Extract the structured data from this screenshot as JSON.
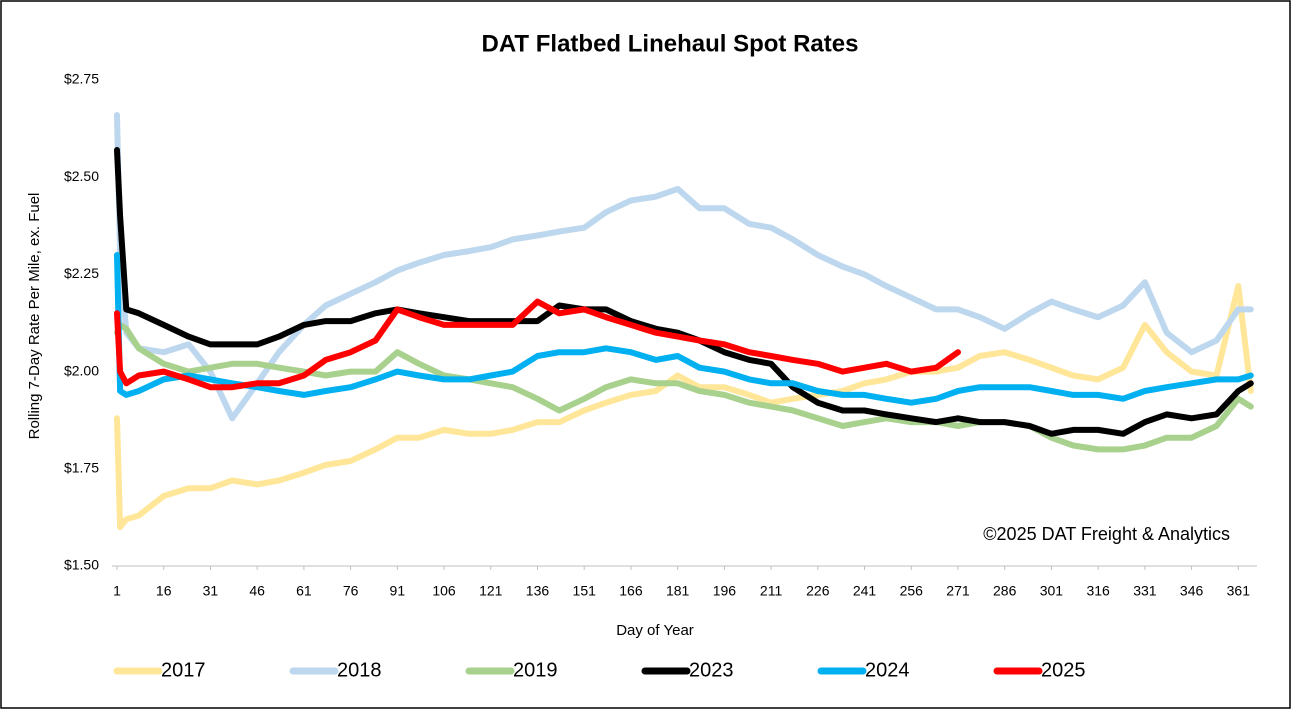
{
  "chart_data": {
    "type": "line",
    "title": "DAT Flatbed Linehaul Spot Rates",
    "x_label": "Day of Year",
    "y_label": "Rolling 7-Day Rate Per Mile, ex. Fuel",
    "annotation": "©2025 DAT Freight & Analytics",
    "x": [
      1,
      2,
      4,
      8,
      16,
      24,
      31,
      38,
      46,
      53,
      61,
      68,
      76,
      84,
      91,
      98,
      106,
      114,
      121,
      128,
      136,
      143,
      151,
      158,
      166,
      174,
      181,
      188,
      196,
      204,
      211,
      218,
      226,
      234,
      241,
      248,
      256,
      264,
      271,
      278,
      286,
      294,
      301,
      308,
      316,
      324,
      331,
      338,
      346,
      354,
      361,
      365
    ],
    "xlim": [
      1,
      367
    ],
    "xticks": [
      1,
      16,
      31,
      46,
      61,
      76,
      91,
      106,
      121,
      136,
      151,
      166,
      181,
      196,
      211,
      226,
      241,
      256,
      271,
      286,
      301,
      316,
      331,
      346,
      361
    ],
    "ylim": [
      1.5,
      2.75
    ],
    "yticks": [
      {
        "value": 1.5,
        "label": "$1.50"
      },
      {
        "value": 1.75,
        "label": "$1.75"
      },
      {
        "value": 2.0,
        "label": "$2.00"
      },
      {
        "value": 2.25,
        "label": "$2.25"
      },
      {
        "value": 2.5,
        "label": "$2.50"
      },
      {
        "value": 2.75,
        "label": "$2.75"
      }
    ],
    "grid": false,
    "legend": "bottom",
    "series": [
      {
        "name": "2017",
        "color": "#ffe699",
        "values": [
          1.88,
          1.6,
          1.62,
          1.63,
          1.68,
          1.7,
          1.7,
          1.72,
          1.71,
          1.72,
          1.74,
          1.76,
          1.77,
          1.8,
          1.83,
          1.83,
          1.85,
          1.84,
          1.84,
          1.85,
          1.87,
          1.87,
          1.9,
          1.92,
          1.94,
          1.95,
          1.99,
          1.96,
          1.96,
          1.94,
          1.92,
          1.93,
          1.94,
          1.95,
          1.97,
          1.98,
          2.0,
          2.0,
          2.01,
          2.04,
          2.05,
          2.03,
          2.01,
          1.99,
          1.98,
          2.01,
          2.12,
          2.05,
          2.0,
          1.99,
          2.22,
          1.95
        ]
      },
      {
        "name": "2018",
        "color": "#bdd7ee",
        "values": [
          2.66,
          2.3,
          2.1,
          2.06,
          2.05,
          2.07,
          2.0,
          1.88,
          1.97,
          2.05,
          2.12,
          2.17,
          2.2,
          2.23,
          2.26,
          2.28,
          2.3,
          2.31,
          2.32,
          2.34,
          2.35,
          2.36,
          2.37,
          2.41,
          2.44,
          2.45,
          2.47,
          2.42,
          2.42,
          2.38,
          2.37,
          2.34,
          2.3,
          2.27,
          2.25,
          2.22,
          2.19,
          2.16,
          2.16,
          2.14,
          2.11,
          2.15,
          2.18,
          2.16,
          2.14,
          2.17,
          2.23,
          2.1,
          2.05,
          2.08,
          2.16,
          2.16
        ]
      },
      {
        "name": "2019",
        "color": "#a9d18e",
        "values": [
          2.1,
          2.12,
          2.11,
          2.06,
          2.02,
          2.0,
          2.01,
          2.02,
          2.02,
          2.01,
          2.0,
          1.99,
          2.0,
          2.0,
          2.05,
          2.02,
          1.99,
          1.98,
          1.97,
          1.96,
          1.93,
          1.9,
          1.93,
          1.96,
          1.98,
          1.97,
          1.97,
          1.95,
          1.94,
          1.92,
          1.91,
          1.9,
          1.88,
          1.86,
          1.87,
          1.88,
          1.87,
          1.87,
          1.86,
          1.87,
          1.87,
          1.86,
          1.83,
          1.81,
          1.8,
          1.8,
          1.81,
          1.83,
          1.83,
          1.86,
          1.93,
          1.91
        ]
      },
      {
        "name": "2023",
        "color": "#000000",
        "values": [
          2.57,
          2.4,
          2.16,
          2.15,
          2.12,
          2.09,
          2.07,
          2.07,
          2.07,
          2.09,
          2.12,
          2.13,
          2.13,
          2.15,
          2.16,
          2.15,
          2.14,
          2.13,
          2.13,
          2.13,
          2.13,
          2.17,
          2.16,
          2.16,
          2.13,
          2.11,
          2.1,
          2.08,
          2.05,
          2.03,
          2.02,
          1.96,
          1.92,
          1.9,
          1.9,
          1.89,
          1.88,
          1.87,
          1.88,
          1.87,
          1.87,
          1.86,
          1.84,
          1.85,
          1.85,
          1.84,
          1.87,
          1.89,
          1.88,
          1.89,
          1.95,
          1.97
        ]
      },
      {
        "name": "2024",
        "color": "#00b0f0",
        "values": [
          2.3,
          1.95,
          1.94,
          1.95,
          1.98,
          1.99,
          1.98,
          1.97,
          1.96,
          1.95,
          1.94,
          1.95,
          1.96,
          1.98,
          2.0,
          1.99,
          1.98,
          1.98,
          1.99,
          2.0,
          2.04,
          2.05,
          2.05,
          2.06,
          2.05,
          2.03,
          2.04,
          2.01,
          2.0,
          1.98,
          1.97,
          1.97,
          1.95,
          1.94,
          1.94,
          1.93,
          1.92,
          1.93,
          1.95,
          1.96,
          1.96,
          1.96,
          1.95,
          1.94,
          1.94,
          1.93,
          1.95,
          1.96,
          1.97,
          1.98,
          1.98,
          1.99
        ]
      },
      {
        "name": "2025",
        "color": "#ff0000",
        "values": [
          2.15,
          2.0,
          1.97,
          1.99,
          2.0,
          1.98,
          1.96,
          1.96,
          1.97,
          1.97,
          1.99,
          2.03,
          2.05,
          2.08,
          2.16,
          2.14,
          2.12,
          2.12,
          2.12,
          2.12,
          2.18,
          2.15,
          2.16,
          2.14,
          2.12,
          2.1,
          2.09,
          2.08,
          2.07,
          2.05,
          2.04,
          2.03,
          2.02,
          2.0,
          2.01,
          2.02,
          2.0,
          2.01,
          2.05,
          null,
          null,
          null,
          null,
          null,
          null,
          null,
          null,
          null,
          null,
          null,
          null,
          null
        ]
      }
    ]
  }
}
